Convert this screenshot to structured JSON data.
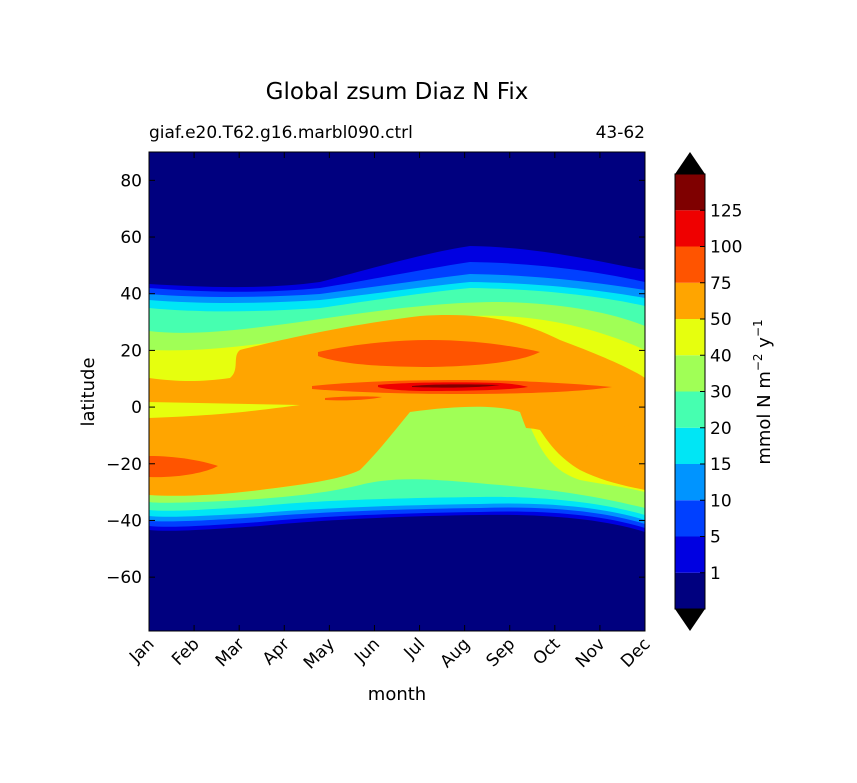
{
  "chart_data": {
    "type": "heatmap",
    "title": "Global zsum Diaz N Fix",
    "subtitle_left": "giaf.e20.T62.g16.marbl090.ctrl",
    "subtitle_right": "43-62",
    "xlabel": "month",
    "ylabel": "latitude",
    "x_ticks": [
      "Jan",
      "Feb",
      "Mar",
      "Apr",
      "May",
      "Jun",
      "Jul",
      "Aug",
      "Sep",
      "Oct",
      "Nov",
      "Dec"
    ],
    "y_ticks": [
      "80",
      "60",
      "40",
      "20",
      "0",
      "−20",
      "−40",
      "−60"
    ],
    "y_tick_values": [
      80,
      60,
      40,
      20,
      0,
      -20,
      -40,
      -60
    ],
    "ylim": [
      -79,
      90
    ],
    "xlim": [
      1,
      12
    ],
    "colorbar": {
      "label_main": "mmol N m",
      "label_exp1": "−2",
      "label_mid": " y",
      "label_exp2": "−1",
      "levels": [
        0,
        1,
        5,
        10,
        15,
        20,
        30,
        40,
        50,
        75,
        100,
        125,
        150
      ],
      "tick_labels": [
        "1",
        "5",
        "10",
        "15",
        "20",
        "30",
        "40",
        "50",
        "75",
        "100",
        "125"
      ],
      "colors": [
        "#00007f",
        "#0000e1",
        "#0040ff",
        "#0094ff",
        "#00e6f5",
        "#46ffb0",
        "#a0ff56",
        "#e6ff0e",
        "#ffa500",
        "#ff5400",
        "#ef0000",
        "#7f0000"
      ],
      "under_color": "#000000",
      "over_color": "#000000"
    }
  }
}
